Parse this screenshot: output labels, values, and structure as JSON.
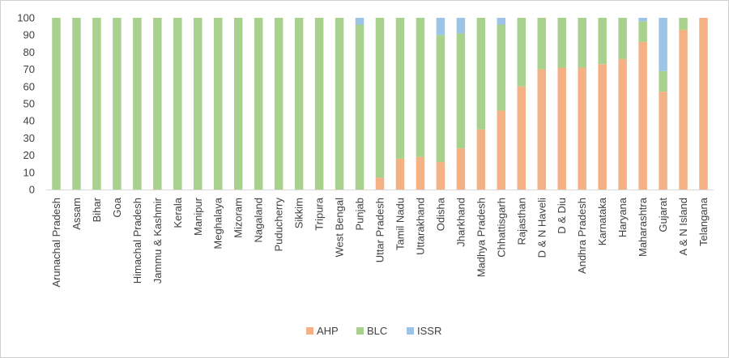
{
  "chart_data": {
    "type": "bar",
    "stacked": true,
    "title": "",
    "xlabel": "",
    "ylabel": "",
    "ylim": [
      0,
      100
    ],
    "yticks": [
      0,
      10,
      20,
      30,
      40,
      50,
      60,
      70,
      80,
      90,
      100
    ],
    "grid": false,
    "legend_position": "bottom",
    "categories": [
      "Arunachal Pradesh",
      "Assam",
      "Bihar",
      "Goa",
      "Himachal Pradesh",
      "Jammu & Kashmir",
      "Kerala",
      "Manipur",
      "Meghalaya",
      "Mizoram",
      "Nagaland",
      "Puducherry",
      "Sikkim",
      "Tripura",
      "West Bengal",
      "Punjab",
      "Uttar Pradesh",
      "Tamil Nadu",
      "Uttarakhand",
      "Odisha",
      "Jharkhand",
      "Madhya Pradesh",
      "Chhattisgarh",
      "Rajasthan",
      "D & N Haveli",
      "D & Diu",
      "Andhra Pradesh",
      "Karnataka",
      "Haryana",
      "Maharashtra",
      "Gujarat",
      "A & N Island",
      "Telangana"
    ],
    "series": [
      {
        "name": "AHP",
        "color": "#f4b183",
        "values": [
          0,
          0,
          0,
          0,
          0,
          0,
          0,
          0,
          0,
          0,
          0,
          0,
          0,
          0,
          0,
          0,
          7,
          18,
          19,
          16,
          24,
          35,
          46,
          60,
          70,
          71,
          71,
          73,
          76,
          86,
          57,
          93,
          100
        ]
      },
      {
        "name": "BLC",
        "color": "#a9d18e",
        "values": [
          100,
          100,
          100,
          100,
          100,
          100,
          100,
          100,
          100,
          100,
          100,
          100,
          100,
          100,
          100,
          96,
          93,
          82,
          81,
          74,
          67,
          65,
          50,
          40,
          30,
          29,
          29,
          27,
          24,
          12,
          12,
          7,
          0
        ]
      },
      {
        "name": "ISSR",
        "color": "#9dc3e6",
        "values": [
          0,
          0,
          0,
          0,
          0,
          0,
          0,
          0,
          0,
          0,
          0,
          0,
          0,
          0,
          0,
          4,
          0,
          0,
          0,
          10,
          9,
          0,
          4,
          0,
          0,
          0,
          0,
          0,
          0,
          2,
          31,
          0,
          0
        ]
      }
    ]
  }
}
